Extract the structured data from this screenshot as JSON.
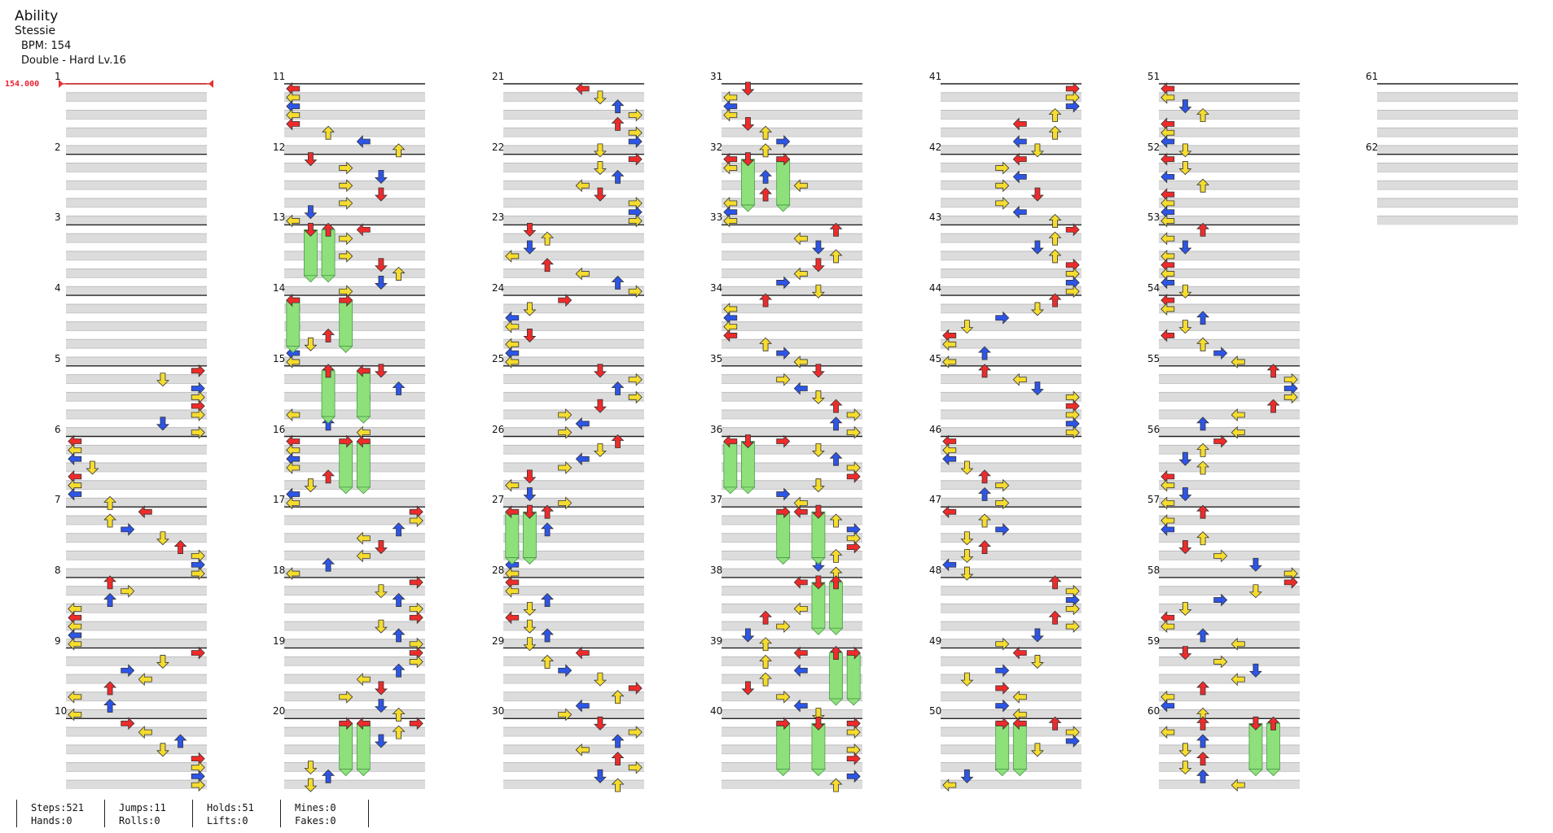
{
  "song": {
    "title": "Ability",
    "artist": "Stessie",
    "bpm_label": "BPM: 154",
    "difficulty": "Double - Hard  Lv.16"
  },
  "bpm_change": {
    "label": "154.000",
    "measure": 1
  },
  "measures": {
    "count": 62,
    "per_column": 10
  },
  "stats": [
    {
      "a": "Steps:521",
      "b": "Hands:0"
    },
    {
      "a": "Jumps:11",
      "b": "Rolls:0"
    },
    {
      "a": "Holds:51",
      "b": "Lifts:0"
    },
    {
      "a": "Mines:0",
      "b": "Fakes:0"
    }
  ],
  "colors": {
    "red": "#ee2b2b",
    "blue": "#2d55e6",
    "yellow": "#f5dc2e",
    "hold": "#8ee07a",
    "stripe": "#dcdcdc",
    "bpm": "#e23333"
  }
}
